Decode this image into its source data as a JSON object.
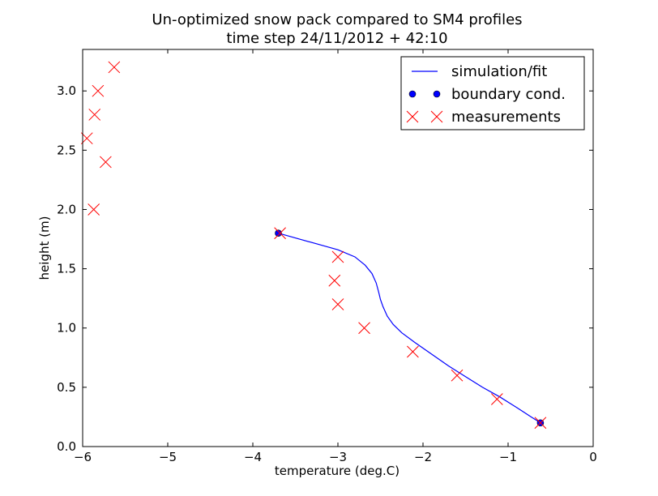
{
  "chart_data": {
    "type": "line",
    "title": "Un-optimized snow pack compared to SM4 profiles",
    "subtitle": "time step 24/11/2012 + 42:10",
    "xlabel": "temperature (deg.C)",
    "ylabel": "height (m)",
    "xlim": [
      -6,
      0
    ],
    "ylim": [
      0,
      3.35
    ],
    "x_ticks": [
      -6,
      -5,
      -4,
      -3,
      -2,
      -1,
      0
    ],
    "x_tick_labels": [
      "−6",
      "−5",
      "−4",
      "−3",
      "−2",
      "−1",
      "0"
    ],
    "y_ticks": [
      0.0,
      0.5,
      1.0,
      1.5,
      2.0,
      2.5,
      3.0
    ],
    "y_tick_labels": [
      "0.0",
      "0.5",
      "1.0",
      "1.5",
      "2.0",
      "2.5",
      "3.0"
    ],
    "grid": false,
    "legend_position": "top-right",
    "series": [
      {
        "name": "simulation/fit",
        "style": "line",
        "color": "#0000ff",
        "x": [
          -3.7,
          -3.45,
          -3.2,
          -3.0,
          -2.8,
          -2.68,
          -2.6,
          -2.55,
          -2.52,
          -2.5,
          -2.47,
          -2.42,
          -2.35,
          -2.25,
          -2.1,
          -1.9,
          -1.7,
          -1.5,
          -1.3,
          -1.1,
          -0.9,
          -0.75,
          -0.62
        ],
        "y": [
          1.8,
          1.75,
          1.7,
          1.66,
          1.6,
          1.53,
          1.46,
          1.38,
          1.3,
          1.24,
          1.18,
          1.1,
          1.03,
          0.96,
          0.88,
          0.78,
          0.68,
          0.59,
          0.5,
          0.42,
          0.33,
          0.26,
          0.2
        ]
      },
      {
        "name": "boundary cond.",
        "style": "dot",
        "color": "#0000ff",
        "x": [
          -3.7,
          -0.62
        ],
        "y": [
          1.8,
          0.2
        ]
      },
      {
        "name": "measurements",
        "style": "x",
        "color": "#ff0000",
        "x": [
          -5.63,
          -5.82,
          -5.86,
          -5.95,
          -5.73,
          -5.87,
          -3.68,
          -3.0,
          -3.04,
          -3.0,
          -2.69,
          -2.12,
          -1.6,
          -1.13,
          -0.62
        ],
        "y": [
          3.2,
          3.0,
          2.8,
          2.6,
          2.4,
          2.0,
          1.8,
          1.6,
          1.4,
          1.2,
          1.0,
          0.8,
          0.6,
          0.4,
          0.2
        ]
      }
    ]
  }
}
